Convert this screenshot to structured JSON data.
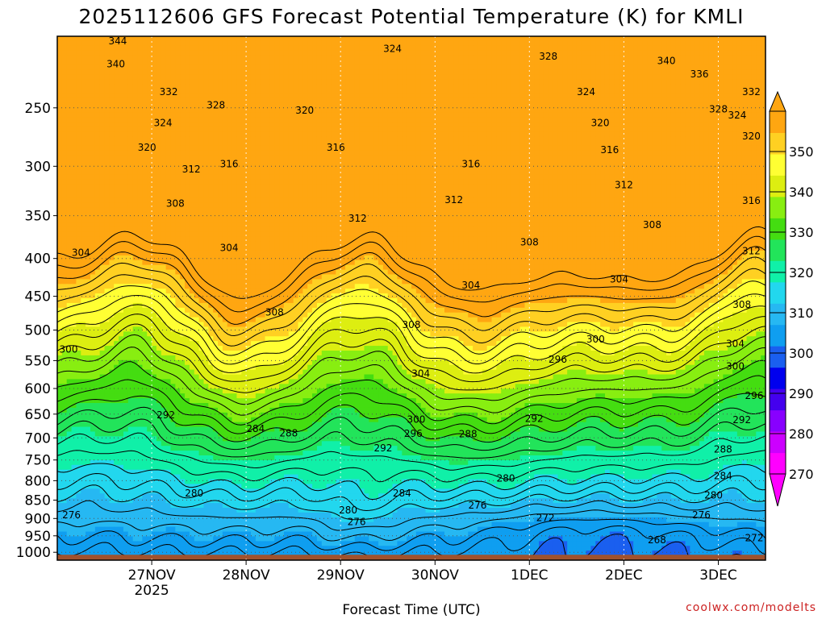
{
  "chart_data": {
    "type": "heatmap",
    "title": "2025112606 GFS Forecast Potential Temperature (K) for KMLI",
    "xlabel": "Forecast Time (UTC)",
    "ylabel": "",
    "credit": "coolwx.com/modelts",
    "x_day_range": [
      0,
      7.5
    ],
    "x_ticks": [
      {
        "day": 1,
        "label": "27NOV",
        "sub": "2025"
      },
      {
        "day": 2,
        "label": "28NOV",
        "sub": ""
      },
      {
        "day": 3,
        "label": "29NOV",
        "sub": ""
      },
      {
        "day": 4,
        "label": "30NOV",
        "sub": ""
      },
      {
        "day": 5,
        "label": "1DEC",
        "sub": ""
      },
      {
        "day": 6,
        "label": "2DEC",
        "sub": ""
      },
      {
        "day": 7,
        "label": "3DEC",
        "sub": ""
      }
    ],
    "y_axis_hPa": [
      200,
      1025
    ],
    "y_ticks": [
      250,
      300,
      350,
      400,
      450,
      500,
      550,
      600,
      650,
      700,
      750,
      800,
      850,
      900,
      950,
      1000
    ],
    "colorbar": {
      "levels": [
        270,
        280,
        290,
        300,
        310,
        320,
        330,
        340,
        350
      ],
      "colors": [
        "#ff00ff",
        "#cc00ff",
        "#8800ff",
        "#4400ee",
        "#0000ee",
        "#1a5fef",
        "#0f9ef0",
        "#26b8f2",
        "#22d7ee",
        "#10f0a8",
        "#22e45a",
        "#44dd11",
        "#88ee11",
        "#ddee11",
        "#ffff33",
        "#ffd022",
        "#ffa611"
      ],
      "color_levels": [
        270,
        274,
        278,
        282,
        286,
        290,
        294,
        298,
        302,
        306,
        310,
        314,
        318,
        322,
        326,
        330,
        334,
        338,
        342,
        346,
        350
      ]
    },
    "contour_interval_K": 2,
    "contour_labels": [
      {
        "t": 0.64,
        "p": 203,
        "v": "344"
      },
      {
        "t": 0.62,
        "p": 218,
        "v": "340"
      },
      {
        "t": 1.18,
        "p": 238,
        "v": "332"
      },
      {
        "t": 1.68,
        "p": 248,
        "v": "328"
      },
      {
        "t": 1.12,
        "p": 262,
        "v": "324"
      },
      {
        "t": 0.95,
        "p": 283,
        "v": "320"
      },
      {
        "t": 1.42,
        "p": 303,
        "v": "312"
      },
      {
        "t": 1.82,
        "p": 298,
        "v": "316"
      },
      {
        "t": 1.25,
        "p": 337,
        "v": "308"
      },
      {
        "t": 0.25,
        "p": 393,
        "v": "304"
      },
      {
        "t": 1.82,
        "p": 387,
        "v": "304"
      },
      {
        "t": 3.55,
        "p": 208,
        "v": "324"
      },
      {
        "t": 2.62,
        "p": 252,
        "v": "320"
      },
      {
        "t": 2.95,
        "p": 283,
        "v": "316"
      },
      {
        "t": 3.18,
        "p": 353,
        "v": "312"
      },
      {
        "t": 2.3,
        "p": 473,
        "v": "308"
      },
      {
        "t": 3.75,
        "p": 492,
        "v": "308"
      },
      {
        "t": 3.85,
        "p": 573,
        "v": "304"
      },
      {
        "t": 4.38,
        "p": 298,
        "v": "316"
      },
      {
        "t": 4.2,
        "p": 333,
        "v": "312"
      },
      {
        "t": 4.38,
        "p": 435,
        "v": "304"
      },
      {
        "t": 5.0,
        "p": 380,
        "v": "308"
      },
      {
        "t": 0.12,
        "p": 531,
        "v": "300"
      },
      {
        "t": 1.15,
        "p": 652,
        "v": "292"
      },
      {
        "t": 2.1,
        "p": 680,
        "v": "284"
      },
      {
        "t": 2.45,
        "p": 690,
        "v": "288"
      },
      {
        "t": 3.8,
        "p": 661,
        "v": "300"
      },
      {
        "t": 3.77,
        "p": 691,
        "v": "296"
      },
      {
        "t": 3.45,
        "p": 723,
        "v": "292"
      },
      {
        "t": 4.35,
        "p": 692,
        "v": "288"
      },
      {
        "t": 3.65,
        "p": 832,
        "v": "284"
      },
      {
        "t": 1.45,
        "p": 832,
        "v": "280"
      },
      {
        "t": 0.15,
        "p": 890,
        "v": "276"
      },
      {
        "t": 3.08,
        "p": 877,
        "v": "280"
      },
      {
        "t": 3.17,
        "p": 910,
        "v": "276"
      },
      {
        "t": 4.75,
        "p": 794,
        "v": "280"
      },
      {
        "t": 4.45,
        "p": 864,
        "v": "276"
      },
      {
        "t": 5.05,
        "p": 659,
        "v": "292"
      },
      {
        "t": 5.3,
        "p": 548,
        "v": "296"
      },
      {
        "t": 5.7,
        "p": 515,
        "v": "300"
      },
      {
        "t": 5.17,
        "p": 898,
        "v": "272"
      },
      {
        "t": 5.2,
        "p": 213,
        "v": "328"
      },
      {
        "t": 5.6,
        "p": 238,
        "v": "324"
      },
      {
        "t": 5.75,
        "p": 262,
        "v": "320"
      },
      {
        "t": 5.85,
        "p": 285,
        "v": "316"
      },
      {
        "t": 6.45,
        "p": 216,
        "v": "340"
      },
      {
        "t": 6.8,
        "p": 225,
        "v": "336"
      },
      {
        "t": 7.35,
        "p": 238,
        "v": "332"
      },
      {
        "t": 7.0,
        "p": 251,
        "v": "328"
      },
      {
        "t": 7.2,
        "p": 256,
        "v": "324"
      },
      {
        "t": 7.35,
        "p": 273,
        "v": "320"
      },
      {
        "t": 6.0,
        "p": 318,
        "v": "312"
      },
      {
        "t": 6.3,
        "p": 360,
        "v": "308"
      },
      {
        "t": 5.95,
        "p": 427,
        "v": "304"
      },
      {
        "t": 7.35,
        "p": 334,
        "v": "316"
      },
      {
        "t": 7.35,
        "p": 391,
        "v": "312"
      },
      {
        "t": 7.25,
        "p": 462,
        "v": "308"
      },
      {
        "t": 7.18,
        "p": 522,
        "v": "304"
      },
      {
        "t": 7.18,
        "p": 560,
        "v": "300"
      },
      {
        "t": 7.38,
        "p": 614,
        "v": "296"
      },
      {
        "t": 7.25,
        "p": 662,
        "v": "292"
      },
      {
        "t": 7.05,
        "p": 725,
        "v": "288"
      },
      {
        "t": 7.05,
        "p": 788,
        "v": "284"
      },
      {
        "t": 6.95,
        "p": 837,
        "v": "280"
      },
      {
        "t": 6.82,
        "p": 890,
        "v": "276"
      },
      {
        "t": 6.35,
        "p": 963,
        "v": "268"
      },
      {
        "t": 7.38,
        "p": 956,
        "v": "272"
      }
    ]
  }
}
